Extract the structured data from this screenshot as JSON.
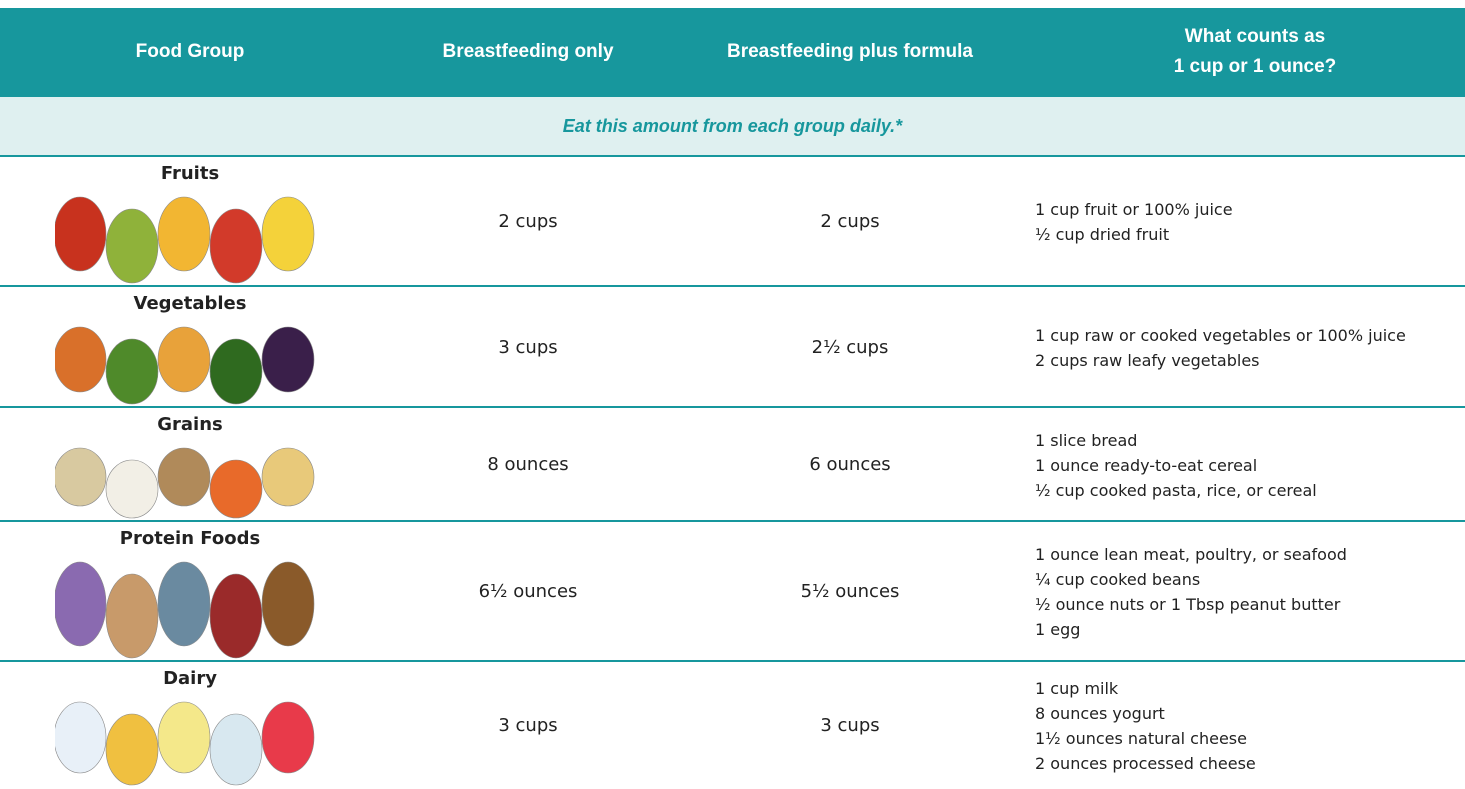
{
  "header": {
    "columns": [
      "Food Group",
      "Breastfeeding only",
      "Breastfeeding plus formula",
      [
        "What counts as",
        "1 cup or 1 ounce?"
      ]
    ]
  },
  "subheader": "Eat this amount from each group daily.*",
  "rows": [
    {
      "group": "Fruits",
      "breastfeeding_only": "2 cups",
      "plus_formula": "2 cups",
      "equivalents": [
        "1 cup fruit or 100% juice",
        "½ cup dried fruit"
      ]
    },
    {
      "group": "Vegetables",
      "breastfeeding_only": "3 cups",
      "plus_formula": "2½ cups",
      "equivalents": [
        "1 cup raw or cooked vegetables or 100% juice",
        "2 cups raw leafy vegetables"
      ]
    },
    {
      "group": "Grains",
      "breastfeeding_only": "8 ounces",
      "plus_formula": "6 ounces",
      "equivalents": [
        "1 slice bread",
        "1 ounce ready-to-eat cereal",
        "½ cup cooked pasta, rice, or cereal"
      ]
    },
    {
      "group": "Protein Foods",
      "breastfeeding_only": "6½ ounces",
      "plus_formula": "5½ ounces",
      "equivalents": [
        "1 ounce lean meat, poultry, or seafood",
        "¼ cup cooked beans",
        "½ ounce nuts or 1 Tbsp peanut butter",
        "1 egg"
      ]
    },
    {
      "group": "Dairy",
      "breastfeeding_only": "3 cups",
      "plus_formula": "3 cups",
      "equivalents": [
        "1 cup milk",
        "8 ounces yogurt",
        "1½ ounces natural cheese",
        "2 ounces processed cheese"
      ]
    }
  ]
}
